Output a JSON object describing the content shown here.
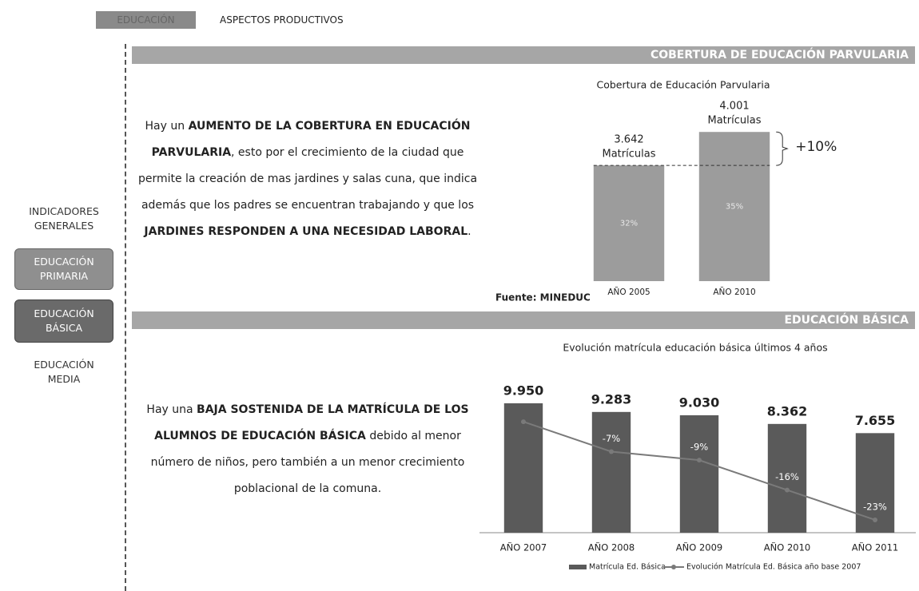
{
  "tabs": [
    "EDUCACIÓN",
    "ASPECTOS PRODUCTIVOS"
  ],
  "sidebar": [
    "INDICADORES GENERALES",
    "EDUCACIÓN PRIMARIA",
    "EDUCACIÓN BÁSICA",
    "EDUCACIÓN MEDIA"
  ],
  "sections": [
    {
      "title": "COBERTURA DE EDUCACIÓN PARVULARIA",
      "text": [
        {
          "text": "Hay un ",
          "bold": false
        },
        {
          "text": "AUMENTO DE LA COBERTURA EN EDUCACIÓN PARVULARIA",
          "bold": true
        },
        {
          "text": ", esto por el crecimiento de la ciudad que permite la creación de mas jardines y salas cuna, que indica además que los padres se encuentran trabajando y que los ",
          "bold": false
        },
        {
          "text": "JARDINES RESPONDEN A  UNA NECESIDAD LABORAL",
          "bold": true
        },
        {
          "text": ".",
          "bold": false
        }
      ]
    },
    {
      "title": "EDUCACIÓN BÁSICA",
      "text": [
        {
          "text": "Hay una ",
          "bold": false
        },
        {
          "text": "BAJA SOSTENIDA DE LA MATRÍCULA DE LOS ALUMNOS DE EDUCACIÓN BÁSICA",
          "bold": true
        },
        {
          "text": " debido al menor número de niños, pero también a un menor crecimiento poblacional de la comuna.",
          "bold": false
        }
      ]
    }
  ],
  "chart_data": [
    {
      "type": "bar",
      "title": "Cobertura de Educación Parvularia",
      "categories": [
        "AÑO 2005",
        "AÑO 2010"
      ],
      "values": [
        3642,
        4001
      ],
      "value_labels": [
        "3.642",
        "4.001"
      ],
      "unit_label": "Matrículas",
      "inner_values": [
        32,
        35
      ],
      "inner_value_labels": [
        "32%",
        "35%"
      ],
      "color": "#9c9c9c",
      "ylim": [
        2400,
        4200
      ],
      "annotation": "+10%",
      "source": "Fuente: MINEDUC"
    },
    {
      "type": "bar",
      "title": "Evolución matrícula educación básica últimos 4 años",
      "categories": [
        "AÑO 2007",
        "AÑO 2008",
        "AÑO 2009",
        "AÑO 2010",
        "AÑO 2011"
      ],
      "series": [
        {
          "name": "Matrícula Ed. Básica",
          "type": "bar",
          "color": "#5a5a5a",
          "values": [
            9950,
            9283,
            9030,
            8362,
            7655
          ],
          "value_labels": [
            "9.950",
            "9.283",
            "9.030",
            "8.362",
            "7.655"
          ]
        },
        {
          "name": "Evolución Matrícula Ed. Básica año base 2007",
          "type": "line",
          "axis": "y2",
          "color": "#7a7a7a",
          "values": [
            0,
            -7,
            -9,
            -16,
            -23
          ],
          "value_labels": [
            null,
            "-7%",
            "-9%",
            "-16%",
            "-23%"
          ]
        }
      ],
      "ylim": [
        0,
        10500
      ],
      "y2lim": [
        -26,
        6
      ],
      "legend": "bottom"
    }
  ]
}
